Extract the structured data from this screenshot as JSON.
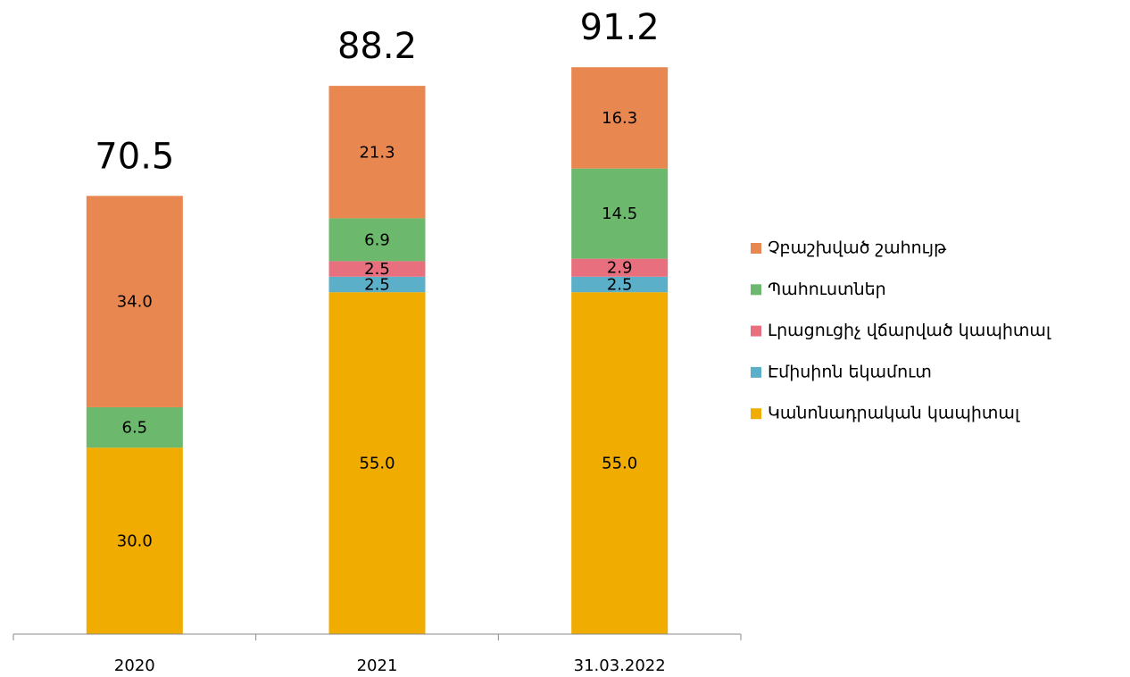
{
  "chart_data": {
    "type": "bar",
    "stacked": true,
    "categories": [
      "2020",
      "2021",
      "31.03.2022"
    ],
    "series": [
      {
        "name": "Կանոնադրական կապիտալ",
        "color": "#f0ac00",
        "values": [
          30,
          55,
          55
        ],
        "value_labels": [
          "30.0",
          "55.0",
          "55.0"
        ]
      },
      {
        "name": "Էմիսիոն եկամուտ",
        "color": "#5bafc8",
        "values": [
          null,
          2.5,
          2.5
        ],
        "value_labels": [
          null,
          "2.5",
          "2.5"
        ]
      },
      {
        "name": "Լրացուցիչ վճարված կապիտալ",
        "color": "#e8707e",
        "values": [
          null,
          2.5,
          2.9
        ],
        "value_labels": [
          null,
          "2.5",
          "2.9"
        ]
      },
      {
        "name": "Պահուստներ",
        "color": "#6cb96e",
        "values": [
          6.5,
          6.9,
          14.5
        ],
        "value_labels": [
          "6.5",
          "6.9",
          "14.5"
        ]
      },
      {
        "name": "Չբաշխված շահույթ",
        "color": "#e8874f",
        "values": [
          34,
          21.3,
          16.3
        ],
        "value_labels": [
          "34.0",
          "21.3",
          "16.3"
        ]
      }
    ],
    "totals": [
      70.5,
      88.2,
      91.2
    ],
    "ylim": [
      0,
      100
    ]
  }
}
